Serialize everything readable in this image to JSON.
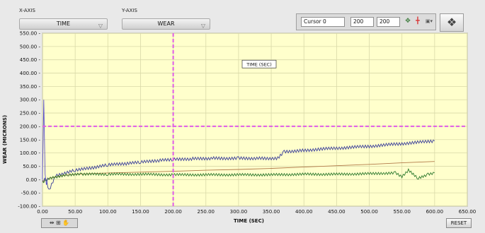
{
  "window": {
    "title": ""
  },
  "controls": {
    "x_axis_label": "X-AXIS",
    "x_axis_value": "TIME",
    "y_axis_label": "Y-AXIS",
    "y_axis_value": "WEAR"
  },
  "cursor": {
    "name": "Cursor 0",
    "x": "200",
    "y": "200"
  },
  "buttons": {
    "reset": "RESET",
    "tools": "⇹ ⊞ ✋"
  },
  "chart_data": {
    "type": "line",
    "title": "",
    "xlabel": "TIME (SEC)",
    "ylabel": "WEAR (MICRONS)",
    "annotation": "TIME (SEC)",
    "xlim": [
      0,
      650
    ],
    "ylim": [
      -100,
      550
    ],
    "x_ticks": [
      "0.00",
      "50.00",
      "100.00",
      "150.00",
      "200.00",
      "250.00",
      "300.00",
      "350.00",
      "400.00",
      "450.00",
      "500.00",
      "550.00",
      "600.00",
      "650.00"
    ],
    "y_ticks": [
      "-100.00",
      "-50.00",
      "0.00",
      "50.00",
      "100.00",
      "150.00",
      "200.00",
      "250.00",
      "300.00",
      "350.00",
      "400.00",
      "450.00",
      "500.00",
      "550.00"
    ],
    "grid": true,
    "background_color": "#ffffcc",
    "cursor_lines": {
      "x": 200,
      "y": 200,
      "color": "#e05ce8"
    },
    "series": [
      {
        "color": "#3b3f9a",
        "x": [
          0,
          5,
          10,
          20,
          30,
          50,
          80,
          100,
          130,
          150,
          180,
          200,
          230,
          260,
          300,
          330,
          360,
          366,
          370,
          400,
          450,
          500,
          550,
          600
        ],
        "values": [
          -5,
          5,
          -40,
          15,
          20,
          35,
          45,
          55,
          60,
          65,
          72,
          75,
          78,
          80,
          80,
          80,
          80,
          95,
          105,
          110,
          118,
          125,
          135,
          145
        ],
        "noise": 6
      },
      {
        "color": "#b27a4a",
        "x": [
          0,
          10,
          30,
          50,
          100,
          150,
          200,
          250,
          300,
          350,
          400,
          450,
          500,
          550,
          600
        ],
        "values": [
          -8,
          5,
          15,
          20,
          25,
          28,
          31,
          35,
          38,
          42,
          47,
          52,
          57,
          63,
          68
        ],
        "noise": 0
      },
      {
        "color": "#2f7a2f",
        "x": [
          0,
          10,
          20,
          40,
          60,
          100,
          150,
          200,
          250,
          300,
          350,
          400,
          450,
          500,
          540,
          550,
          560,
          575,
          590,
          600
        ],
        "values": [
          -10,
          5,
          10,
          18,
          20,
          20,
          20,
          18,
          18,
          18,
          18,
          20,
          20,
          22,
          25,
          10,
          35,
          5,
          20,
          25
        ],
        "noise": 5
      },
      {
        "color": "#5a4fcf",
        "x": [
          0,
          2,
          4,
          6,
          8
        ],
        "values": [
          0,
          300,
          20,
          -20,
          5
        ],
        "noise": 0
      }
    ]
  }
}
